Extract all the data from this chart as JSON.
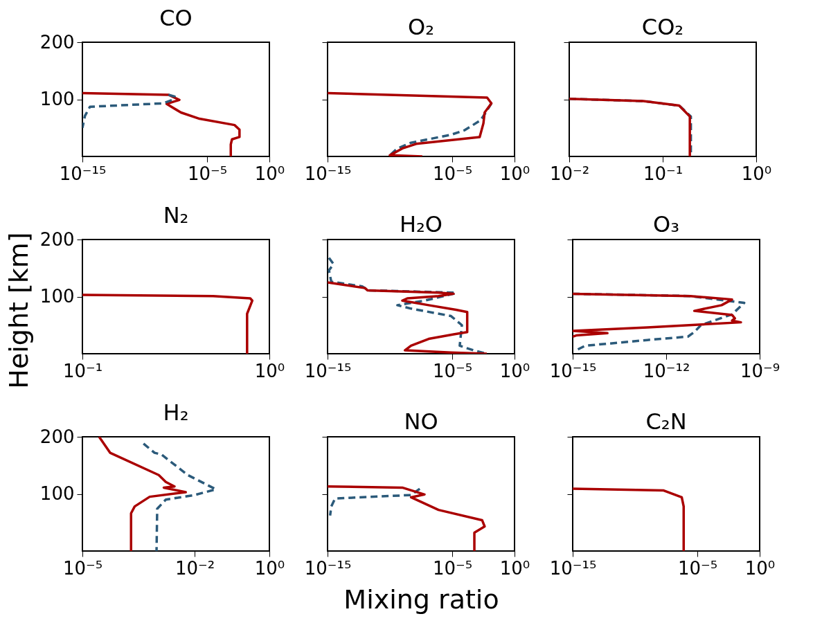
{
  "chart_data": [
    {
      "type": "line",
      "title": "CO",
      "log": "x",
      "xlim": [
        1e-15,
        1
      ],
      "xticks": [
        {
          "value": 1e-15,
          "label": "10⁻¹⁵"
        },
        {
          "value": 1e-05,
          "label": "10⁻⁵"
        },
        {
          "value": 1,
          "label": "10⁰"
        }
      ],
      "ylim": [
        0,
        200
      ],
      "yticks": [
        100,
        200
      ],
      "series": [
        {
          "color": "#aa0000",
          "line_style": "solid",
          "x": [
            1e-15,
            8e-09,
            6e-08,
            5.6e-09,
            8e-08,
            2.5e-06,
            0.0016,
            0.004,
            0.004,
            0.001,
            0.0008,
            0.0008
          ],
          "values": [
            111,
            108,
            99,
            92,
            77,
            66,
            55,
            47,
            34,
            30,
            21,
            0
          ]
        },
        {
          "color": "#2b5a7a",
          "line_style": "dashed",
          "x": [
            8e-09,
            2.5e-08,
            1.6e-08,
            3e-09,
            4e-15,
            1.6e-15,
            1e-15
          ],
          "values": [
            108,
            105,
            99,
            93,
            87,
            71,
            50
          ]
        }
      ]
    },
    {
      "type": "line",
      "title": "O₂",
      "log": "x",
      "tick_labels": "x",
      "xlim": [
        1e-15,
        1
      ],
      "xticks": [
        {
          "value": 1e-15,
          "label": "10⁻¹⁵"
        },
        {
          "value": 1e-05,
          "label": "10⁻⁵"
        },
        {
          "value": 1,
          "label": "10⁰"
        }
      ],
      "ylim": [
        0,
        200
      ],
      "yticks": [
        100,
        200
      ],
      "series": [
        {
          "color": "#2b5a7a",
          "line_style": "dashed",
          "x": [
            0.014,
            0.004,
            0.0018,
            0.0001,
            8e-06,
            5e-09,
            4e-10,
            8e-11
          ],
          "values": [
            93,
            74,
            63,
            46,
            38,
            24,
            14,
            0
          ]
        },
        {
          "color": "#aa0000",
          "line_style": "solid",
          "x": [
            1e-15,
            0.0063,
            0.014,
            0.004,
            0.0032,
            0.0016,
            1.3e-08,
            1e-09,
            1e-10,
            4e-08
          ],
          "values": [
            111,
            103,
            93,
            77,
            58,
            34,
            22,
            14,
            2,
            0
          ]
        }
      ]
    },
    {
      "type": "line",
      "title": "CO₂",
      "log": "x",
      "tick_labels": "x",
      "xlim": [
        0.01,
        1
      ],
      "xticks": [
        {
          "value": 0.01,
          "label": "10⁻²"
        },
        {
          "value": 0.1,
          "label": "10⁻¹"
        },
        {
          "value": 1,
          "label": "10⁰"
        }
      ],
      "ylim": [
        0,
        200
      ],
      "yticks": [
        100,
        200
      ],
      "series": [
        {
          "color": "#2b5a7a",
          "line_style": "dashed",
          "x": [
            0.01,
            0.062,
            0.15,
            0.2,
            0.2
          ],
          "values": [
            101,
            97,
            89,
            70,
            0
          ]
        },
        {
          "color": "#aa0000",
          "line_style": "solid",
          "x": [
            0.01,
            0.062,
            0.15,
            0.195,
            0.195
          ],
          "values": [
            101,
            97,
            89,
            70,
            0
          ]
        }
      ]
    },
    {
      "type": "line",
      "title": "N₂",
      "log": "x",
      "ylabel": "Height [km]",
      "xlim": [
        0.1,
        1
      ],
      "xticks": [
        {
          "value": 0.1,
          "label": "10⁻¹"
        },
        {
          "value": 1,
          "label": "10⁰"
        }
      ],
      "ylim": [
        0,
        200
      ],
      "yticks": [
        100,
        200
      ],
      "series": [
        {
          "color": "#aa0000",
          "line_style": "solid",
          "x": [
            0.1,
            0.5,
            0.79,
            0.81,
            0.76,
            0.76
          ],
          "values": [
            103,
            101,
            97,
            93,
            70,
            0
          ]
        }
      ]
    },
    {
      "type": "line",
      "title": "H₂O",
      "log": "x",
      "tick_labels": "x",
      "xlim": [
        1e-15,
        1
      ],
      "xticks": [
        {
          "value": 1e-15,
          "label": "10⁻¹⁵"
        },
        {
          "value": 1e-05,
          "label": "10⁻⁵"
        },
        {
          "value": 1,
          "label": "10⁰"
        }
      ],
      "ylim": [
        0,
        200
      ],
      "yticks": [
        100,
        200
      ],
      "series": [
        {
          "color": "#2b5a7a",
          "line_style": "dashed",
          "x": [
            1.3e-15,
            3e-15,
            1.3e-15,
            2e-15,
            6e-13,
            2e-12,
            2e-05,
            1.3e-05,
            6e-08,
            4e-10,
            5e-09,
            8e-06,
            6e-05,
            4e-05,
            0.0005,
            0.006
          ],
          "values": [
            168,
            157,
            146,
            126,
            118,
            111,
            107,
            105,
            93,
            85,
            79,
            66,
            50,
            14,
            6,
            0
          ]
        },
        {
          "color": "#aa0000",
          "line_style": "solid",
          "x": [
            1e-15,
            1e-12,
            1.6e-12,
            8e-07,
            1.3e-05,
            8e-07,
            2.5e-09,
            1e-09,
            1.3e-07,
            2e-05,
            0.00016,
            0.00016,
            1.3e-05,
            1.3e-07,
            5e-09,
            1.6e-09,
            8e-06,
            0.006
          ],
          "values": [
            125,
            115,
            111,
            107,
            105,
            101,
            97,
            93,
            85,
            77,
            73,
            38,
            34,
            26,
            14,
            6,
            2,
            0
          ]
        }
      ]
    },
    {
      "type": "line",
      "title": "O₃",
      "log": "x",
      "tick_labels": "x",
      "xlim": [
        1e-15,
        1e-09
      ],
      "xticks": [
        {
          "value": 1e-15,
          "label": "10⁻¹⁵"
        },
        {
          "value": 1e-12,
          "label": "10⁻¹²"
        },
        {
          "value": 1e-09,
          "label": "10⁻⁹"
        }
      ],
      "ylim": [
        0,
        200
      ],
      "yticks": [
        100,
        200
      ],
      "series": [
        {
          "color": "#2b5a7a",
          "line_style": "dashed",
          "x": [
            1e-15,
            6e-12,
            3.2e-10,
            1.3e-10,
            1.3e-11,
            8e-12,
            5e-12,
            2.5e-13,
            2.5e-15,
            1.3e-15
          ],
          "values": [
            105,
            101,
            89,
            69,
            50,
            38,
            30,
            24,
            14,
            6
          ]
        },
        {
          "color": "#aa0000",
          "line_style": "solid",
          "x": [
            1e-15,
            6e-12,
            1.3e-10,
            6e-11,
            8e-12,
            1.3e-10,
            1.6e-10,
            1.3e-10,
            2.5e-10,
            2.5e-13,
            1e-15,
            1.3e-14,
            1.3e-15,
            1e-15
          ],
          "values": [
            105,
            101,
            95,
            85,
            75,
            68,
            62,
            58,
            55,
            46,
            40,
            36,
            32,
            30
          ]
        }
      ]
    },
    {
      "type": "line",
      "title": "H₂",
      "log": "x",
      "xlim": [
        1e-05,
        1
      ],
      "xticks": [
        {
          "value": 1e-05,
          "label": "10⁻⁵"
        },
        {
          "value": 0.01,
          "label": "10⁻²"
        },
        {
          "value": 1,
          "label": "10⁰"
        }
      ],
      "ylim": [
        0,
        200
      ],
      "yticks": [
        100,
        200
      ],
      "series": [
        {
          "color": "#2b5a7a",
          "line_style": "dashed",
          "x": [
            0.00043,
            0.00085,
            0.0013,
            0.0066,
            0.037,
            0.01,
            0.0017,
            0.001,
            0.00096
          ],
          "values": [
            188,
            172,
            169,
            133,
            108,
            98,
            90,
            74,
            0
          ]
        },
        {
          "color": "#aa0000",
          "line_style": "solid",
          "x": [
            2.8e-05,
            5.5e-05,
            0.0011,
            0.0017,
            0.0029,
            0.0015,
            0.0058,
            0.00063,
            0.00025,
            0.0002,
            0.0002
          ],
          "values": [
            200,
            172,
            133,
            121,
            113,
            111,
            103,
            95,
            78,
            66,
            0
          ]
        }
      ]
    },
    {
      "type": "line",
      "title": "NO",
      "log": "x",
      "tick_labels": "x",
      "xlabel": "Mixing ratio",
      "xlim": [
        1e-15,
        1
      ],
      "xticks": [
        {
          "value": 1e-15,
          "label": "10⁻¹⁵"
        },
        {
          "value": 1e-05,
          "label": "10⁻⁵"
        },
        {
          "value": 1,
          "label": "10⁰"
        }
      ],
      "ylim": [
        0,
        200
      ],
      "yticks": [
        100,
        200
      ],
      "series": [
        {
          "color": "#2b5a7a",
          "line_style": "dashed",
          "x": [
            2.5e-08,
            5e-09,
            4e-15,
            2e-15,
            1.6e-15
          ],
          "values": [
            109,
            98,
            92,
            78,
            62
          ]
        },
        {
          "color": "#aa0000",
          "line_style": "solid",
          "x": [
            1e-15,
            1e-09,
            6e-08,
            5e-09,
            8e-07,
            0.0025,
            0.004,
            0.0006,
            0.0006
          ],
          "values": [
            113,
            111,
            99,
            94,
            72,
            54,
            43,
            32,
            0
          ]
        }
      ]
    },
    {
      "type": "line",
      "title": "C₂N",
      "log": "x",
      "tick_labels": "x",
      "xlim": [
        1e-15,
        1
      ],
      "xticks": [
        {
          "value": 1e-15,
          "label": "10⁻¹⁵"
        },
        {
          "value": 1e-05,
          "label": "10⁻⁵"
        },
        {
          "value": 1,
          "label": "10⁰"
        }
      ],
      "ylim": [
        0,
        200
      ],
      "yticks": [
        100,
        200
      ],
      "series": [
        {
          "color": "#aa0000",
          "line_style": "solid",
          "x": [
            1e-15,
            2e-08,
            5.6e-07,
            8e-07,
            8e-07
          ],
          "values": [
            109,
            106,
            94,
            78,
            0
          ]
        }
      ]
    }
  ]
}
